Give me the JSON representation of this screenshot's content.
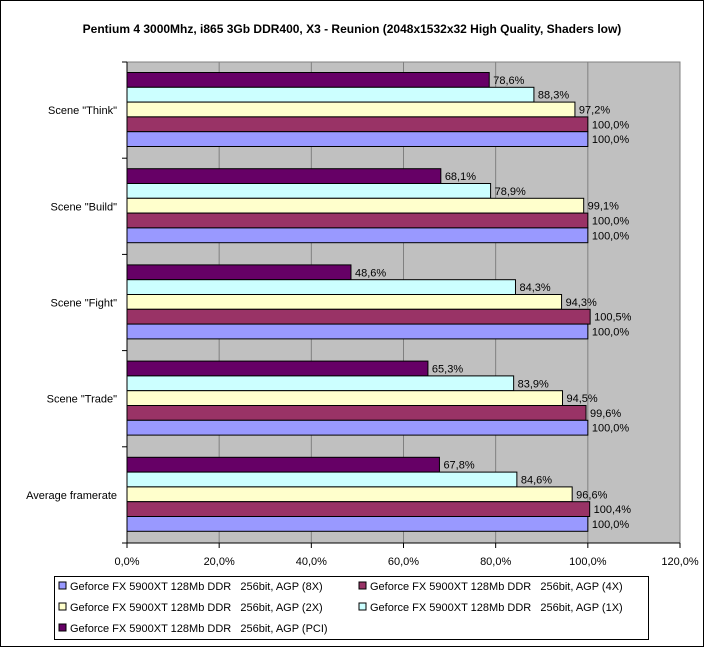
{
  "chart_data": {
    "type": "bar",
    "orientation": "horizontal",
    "title": "Pentium 4 3000Mhz, i865 3Gb DDR400, X3 - Reunion (2048x1532x32 High Quality, Shaders low)",
    "xlabel": "",
    "ylabel": "",
    "xlim": [
      0,
      120
    ],
    "x_ticks": [
      "0,0%",
      "20,0%",
      "40,0%",
      "60,0%",
      "80,0%",
      "100,0%",
      "120,0%"
    ],
    "grid": true,
    "legend_position": "bottom",
    "plot_background": "#C0C0C0",
    "categories": [
      "Scene \"Think\"",
      "Scene \"Build\"",
      "Scene \"Fight\"",
      "Scene \"Trade\"",
      "Average framerate"
    ],
    "series": [
      {
        "name": "Geforce FX 5900XT 128Mb DDR   256bit, AGP (8X)",
        "color": "#9999FF",
        "values": [
          100.0,
          100.0,
          100.0,
          100.0,
          100.0
        ],
        "labels": [
          "100,0%",
          "100,0%",
          "100,0%",
          "100,0%",
          "100,0%"
        ]
      },
      {
        "name": "Geforce FX 5900XT 128Mb DDR   256bit, AGP (4X)",
        "color": "#993366",
        "values": [
          100.0,
          100.0,
          100.5,
          99.6,
          100.4
        ],
        "labels": [
          "100,0%",
          "100,0%",
          "100,5%",
          "99,6%",
          "100,4%"
        ]
      },
      {
        "name": "Geforce FX 5900XT 128Mb DDR   256bit, AGP (2X)",
        "color": "#FFFFCC",
        "values": [
          97.2,
          99.1,
          94.3,
          94.5,
          96.6
        ],
        "labels": [
          "97,2%",
          "99,1%",
          "94,3%",
          "94,5%",
          "96,6%"
        ]
      },
      {
        "name": "Geforce FX 5900XT 128Mb DDR   256bit, AGP (1X)",
        "color": "#CCFFFF",
        "values": [
          88.3,
          78.9,
          84.3,
          83.9,
          84.6
        ],
        "labels": [
          "88,3%",
          "78,9%",
          "84,3%",
          "83,9%",
          "84,6%"
        ]
      },
      {
        "name": "Geforce FX 5900XT 128Mb DDR   256bit, AGP (PCI)",
        "color": "#660066",
        "values": [
          78.6,
          68.1,
          48.6,
          65.3,
          67.8
        ],
        "labels": [
          "78,6%",
          "68,1%",
          "48,6%",
          "65,3%",
          "67,8%"
        ]
      }
    ]
  }
}
